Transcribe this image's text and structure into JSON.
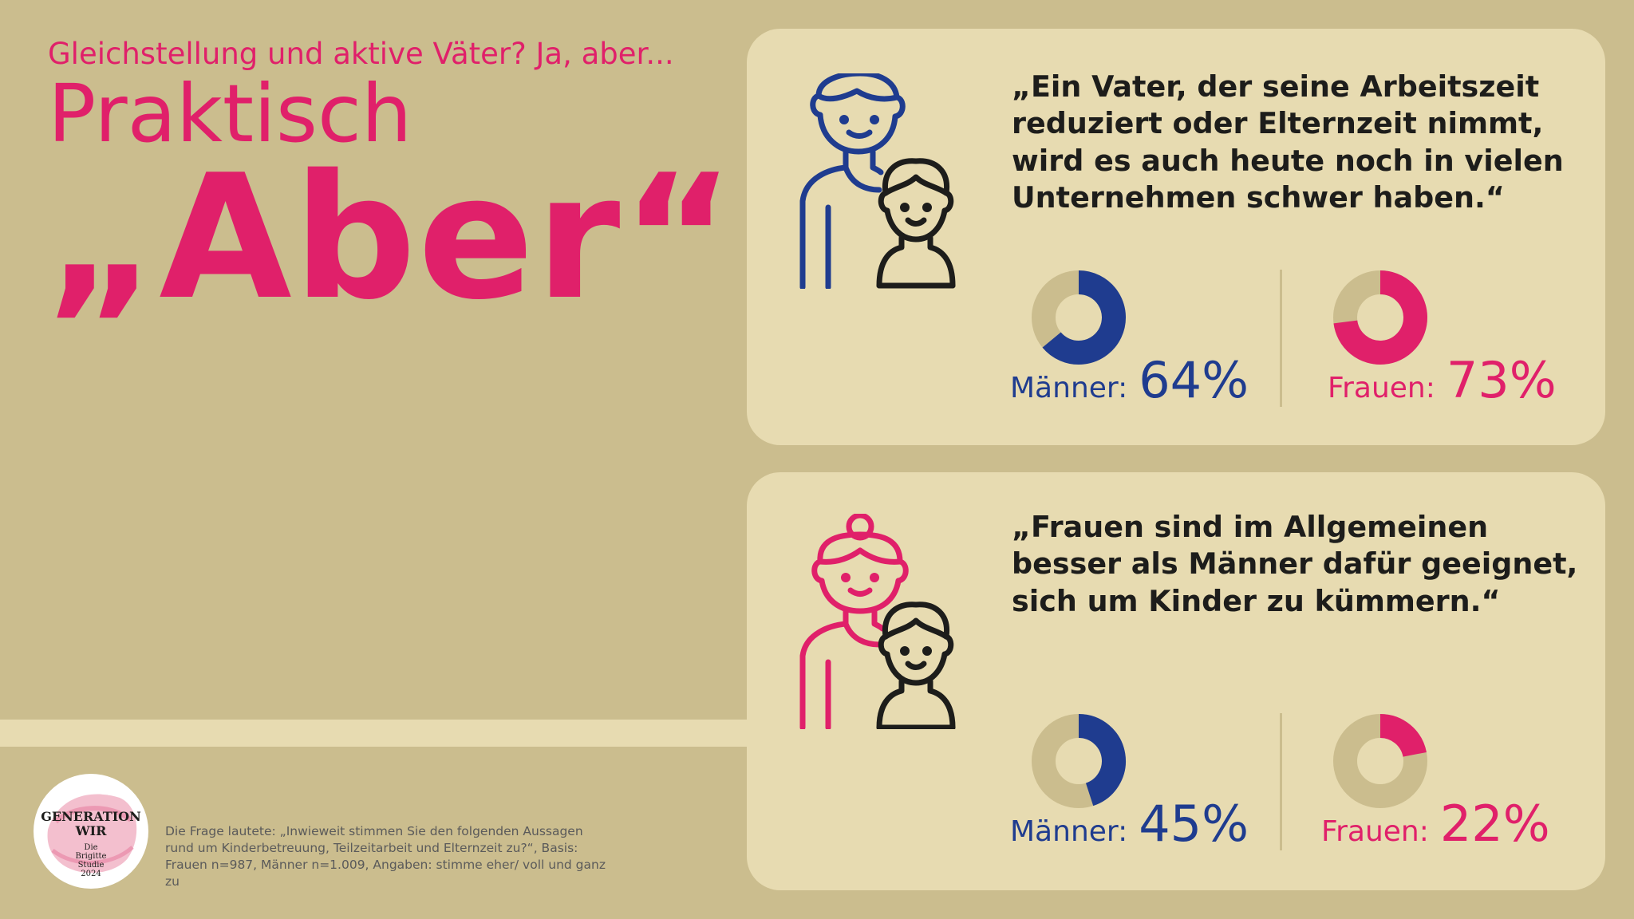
{
  "header": {
    "subtitle": "Gleichstellung und aktive Väter? Ja, aber...",
    "title_line1": "Praktisch",
    "title_line2": "„Aber“"
  },
  "colors": {
    "background": "#cbbd8e",
    "card": "#e7dbb1",
    "accent_pink": "#e0206a",
    "accent_blue": "#1f3c8f",
    "donut_track": "#cbbd8e"
  },
  "statements": [
    {
      "icon": "father-child-icon",
      "quote": "„Ein Vater, der seine Arbeitszeit reduziert oder Elternzeit nimmt, wird es auch heute noch in vielen Unternehmen schwer haben.“",
      "men_label": "Männer:",
      "men_value": "64%",
      "women_label": "Frauen:",
      "women_value": "73%"
    },
    {
      "icon": "mother-child-icon",
      "quote": "„Frauen sind im Allgemeinen besser als Männer dafür geeignet, sich um Kinder zu kümmern.“",
      "men_label": "Männer:",
      "men_value": "45%",
      "women_label": "Frauen:",
      "women_value": "22%"
    }
  ],
  "chart_data": [
    {
      "type": "pie",
      "title": "„Ein Vater, der seine Arbeitszeit reduziert oder Elternzeit nimmt, wird es auch heute noch in vielen Unternehmen schwer haben.“",
      "categories": [
        "Männer",
        "Frauen"
      ],
      "values": [
        64,
        73
      ],
      "unit": "%"
    },
    {
      "type": "pie",
      "title": "„Frauen sind im Allgemeinen besser als Männer dafür geeignet, sich um Kinder zu kümmern.“",
      "categories": [
        "Männer",
        "Frauen"
      ],
      "values": [
        45,
        22
      ],
      "unit": "%"
    }
  ],
  "logo": {
    "line1": "GENERATION",
    "line2": "WIR",
    "line3": "Die",
    "line4": "Brigitte",
    "line5": "Studie",
    "line6": "2024"
  },
  "footnote": "Die Frage lautete: „Inwieweit stimmen Sie den folgenden Aussagen rund um Kinderbetreuung, Teilzeitarbeit und Elternzeit zu?“, Basis: Frauen n=987, Männer n=1.009, Angaben: stimme eher/ voll und ganz zu"
}
